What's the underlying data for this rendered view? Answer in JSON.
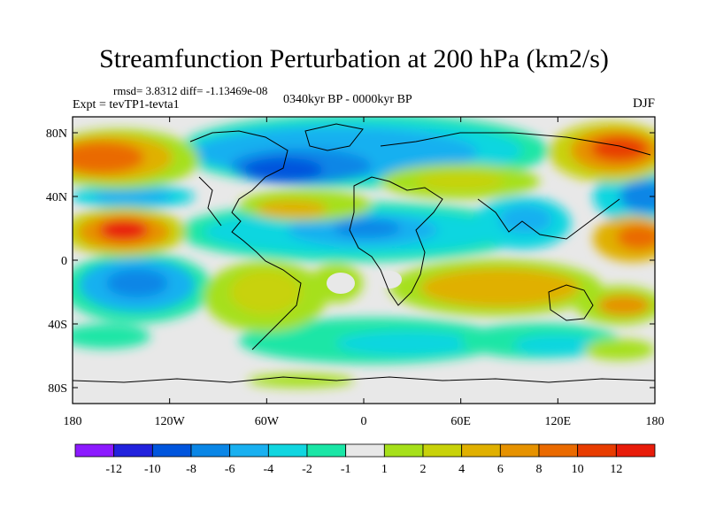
{
  "header": {
    "title": "Streamfunction Perturbation at 200 hPa (km2/s)",
    "stats": "rmsd= 3.8312 diff= -1.13469e-08",
    "experiment": "Expt = tevTP1-tevta1",
    "period": "0340kyr BP - 0000kyr BP",
    "season": "DJF"
  },
  "map": {
    "lat_ticks": [
      "80N",
      "40N",
      "0",
      "40S",
      "80S"
    ],
    "lat_values": [
      80,
      40,
      0,
      -40,
      -80
    ],
    "lon_ticks": [
      "180",
      "120W",
      "60W",
      "0",
      "60E",
      "120E",
      "180"
    ],
    "lon_values": [
      -180,
      -120,
      -60,
      0,
      60,
      120,
      180
    ],
    "lat_range": [
      -90,
      90
    ],
    "lon_range": [
      -180,
      180
    ]
  },
  "colorbar": {
    "labels": [
      "-12",
      "-10",
      "-8",
      "-6",
      "-4",
      "-2",
      "-1",
      "1",
      "2",
      "4",
      "6",
      "8",
      "10",
      "12"
    ],
    "colors": [
      "#8c1aff",
      "#2222dd",
      "#0055dd",
      "#0a86e6",
      "#19b0f0",
      "#11d6e0",
      "#1ae6a6",
      "#e8e8e8",
      "#a6e01a",
      "#c8d20a",
      "#e0b000",
      "#e69200",
      "#ea6a00",
      "#e83c00",
      "#e81c0a"
    ]
  },
  "field_colors": {
    "background": "#e8e8e8",
    "coast": "#000000"
  }
}
